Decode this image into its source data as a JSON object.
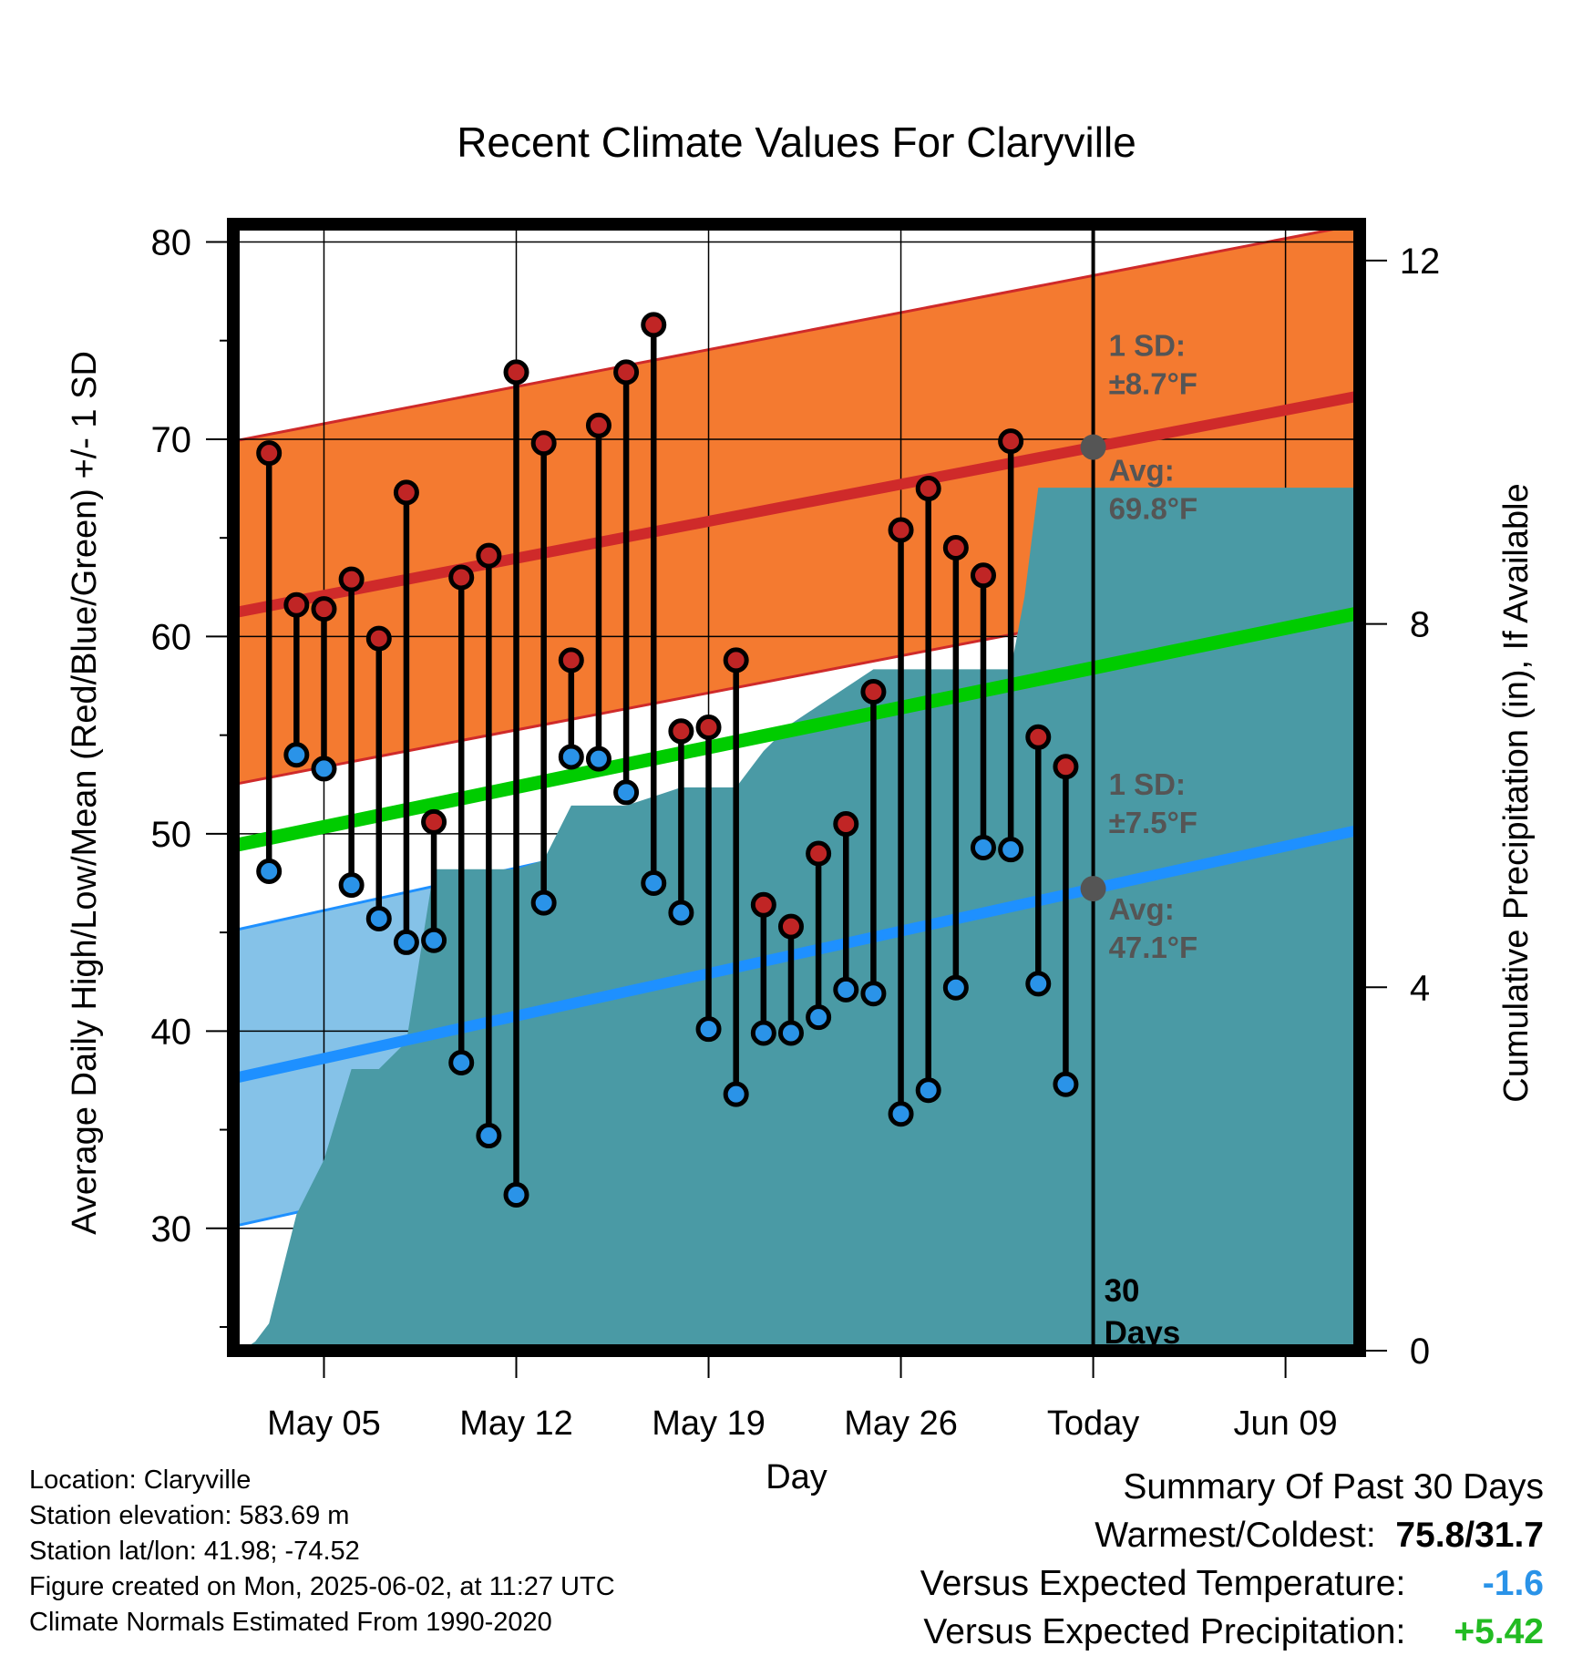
{
  "chart_data": {
    "type": "line",
    "title": "Recent Climate Values For Claryville",
    "xlabel": "Day",
    "ylabel": "Average Daily High/Low/Mean (Red/Blue/Green) +/- 1 SD",
    "y2label": "Cumulative Precipitation (in), If Available",
    "x_ticks": [
      {
        "day": 5,
        "label": "May 05"
      },
      {
        "day": 12,
        "label": "May 12"
      },
      {
        "day": 19,
        "label": "May 19"
      },
      {
        "day": 26,
        "label": "May 26"
      },
      {
        "day": 33,
        "label": "Today"
      },
      {
        "day": 40,
        "label": "Jun 09"
      }
    ],
    "xlim": [
      1.7,
      42.7
    ],
    "ylim": [
      23.8,
      80.9
    ],
    "y_ticks": [
      30,
      40,
      50,
      60,
      70,
      80
    ],
    "y2lim": [
      0,
      12.4
    ],
    "y2_ticks": [
      0,
      4,
      8,
      12
    ],
    "highs": [
      {
        "day": 3,
        "value": 69.3
      },
      {
        "day": 4,
        "value": 61.6
      },
      {
        "day": 5,
        "value": 61.4
      },
      {
        "day": 6,
        "value": 62.9
      },
      {
        "day": 7,
        "value": 59.9
      },
      {
        "day": 8,
        "value": 67.3
      },
      {
        "day": 9,
        "value": 50.6
      },
      {
        "day": 10,
        "value": 63.0
      },
      {
        "day": 11,
        "value": 64.1
      },
      {
        "day": 12,
        "value": 73.4
      },
      {
        "day": 13,
        "value": 69.8
      },
      {
        "day": 14,
        "value": 58.8
      },
      {
        "day": 15,
        "value": 70.7
      },
      {
        "day": 16,
        "value": 73.4
      },
      {
        "day": 17,
        "value": 75.8
      },
      {
        "day": 18,
        "value": 55.2
      },
      {
        "day": 19,
        "value": 55.4
      },
      {
        "day": 20,
        "value": 58.8
      },
      {
        "day": 21,
        "value": 46.4
      },
      {
        "day": 22,
        "value": 45.3
      },
      {
        "day": 23,
        "value": 49.0
      },
      {
        "day": 24,
        "value": 50.5
      },
      {
        "day": 25,
        "value": 57.2
      },
      {
        "day": 26,
        "value": 65.4
      },
      {
        "day": 27,
        "value": 67.5
      },
      {
        "day": 28,
        "value": 64.5
      },
      {
        "day": 29,
        "value": 63.1
      },
      {
        "day": 30,
        "value": 69.9
      },
      {
        "day": 31,
        "value": 54.9
      },
      {
        "day": 32,
        "value": 53.4
      }
    ],
    "lows": [
      {
        "day": 3,
        "value": 48.1
      },
      {
        "day": 4,
        "value": 54.0
      },
      {
        "day": 5,
        "value": 53.3
      },
      {
        "day": 6,
        "value": 47.4
      },
      {
        "day": 7,
        "value": 45.7
      },
      {
        "day": 8,
        "value": 44.5
      },
      {
        "day": 9,
        "value": 44.6
      },
      {
        "day": 10,
        "value": 38.4
      },
      {
        "day": 11,
        "value": 34.7
      },
      {
        "day": 12,
        "value": 31.7
      },
      {
        "day": 13,
        "value": 46.5
      },
      {
        "day": 14,
        "value": 53.9
      },
      {
        "day": 15,
        "value": 53.8
      },
      {
        "day": 16,
        "value": 52.1
      },
      {
        "day": 17,
        "value": 47.5
      },
      {
        "day": 18,
        "value": 46.0
      },
      {
        "day": 19,
        "value": 40.1
      },
      {
        "day": 20,
        "value": 36.8
      },
      {
        "day": 21,
        "value": 39.9
      },
      {
        "day": 22,
        "value": 39.9
      },
      {
        "day": 23,
        "value": 40.7
      },
      {
        "day": 24,
        "value": 42.1
      },
      {
        "day": 25,
        "value": 41.9
      },
      {
        "day": 26,
        "value": 35.8
      },
      {
        "day": 27,
        "value": 37.0
      },
      {
        "day": 28,
        "value": 42.2
      },
      {
        "day": 29,
        "value": 49.3
      },
      {
        "day": 30,
        "value": 49.2
      },
      {
        "day": 31,
        "value": 42.4
      },
      {
        "day": 32,
        "value": 37.3
      }
    ],
    "normal_high": {
      "start": 61.2,
      "end": 72.2
    },
    "normal_high_sd": 8.7,
    "normal_low": {
      "start": 37.6,
      "end": 50.2
    },
    "normal_low_sd": 7.5,
    "normal_mean": {
      "start": 49.4,
      "end": 61.2
    },
    "cumulative_precip": [
      {
        "day": 2.0,
        "value": 0.0
      },
      {
        "day": 2.5,
        "value": 0.1
      },
      {
        "day": 3.0,
        "value": 0.3
      },
      {
        "day": 4.0,
        "value": 1.5
      },
      {
        "day": 5.0,
        "value": 2.1
      },
      {
        "day": 6.0,
        "value": 3.1
      },
      {
        "day": 7.0,
        "value": 3.1
      },
      {
        "day": 8.0,
        "value": 3.4
      },
      {
        "day": 9.0,
        "value": 5.3
      },
      {
        "day": 10.0,
        "value": 5.3
      },
      {
        "day": 11.0,
        "value": 5.3
      },
      {
        "day": 12.0,
        "value": 5.3
      },
      {
        "day": 13.0,
        "value": 5.4
      },
      {
        "day": 14.0,
        "value": 6.0
      },
      {
        "day": 15.0,
        "value": 6.0
      },
      {
        "day": 16.0,
        "value": 6.0
      },
      {
        "day": 17.0,
        "value": 6.1
      },
      {
        "day": 18.0,
        "value": 6.2
      },
      {
        "day": 19.0,
        "value": 6.2
      },
      {
        "day": 20.0,
        "value": 6.2
      },
      {
        "day": 21.0,
        "value": 6.6
      },
      {
        "day": 22.0,
        "value": 6.9
      },
      {
        "day": 23.0,
        "value": 7.1
      },
      {
        "day": 24.0,
        "value": 7.3
      },
      {
        "day": 25.0,
        "value": 7.5
      },
      {
        "day": 26.0,
        "value": 7.5
      },
      {
        "day": 27.0,
        "value": 7.5
      },
      {
        "day": 28.0,
        "value": 7.5
      },
      {
        "day": 29.0,
        "value": 7.5
      },
      {
        "day": 30.0,
        "value": 7.5
      },
      {
        "day": 30.5,
        "value": 8.3
      },
      {
        "day": 31.0,
        "value": 9.5
      },
      {
        "day": 33.0,
        "value": 9.5
      },
      {
        "day": 42.7,
        "value": 9.5
      }
    ],
    "today_day": 33,
    "annotations": {
      "high_sd_label": "1 SD:",
      "high_sd_value": "±8.7°F",
      "high_avg_label": "Avg:",
      "high_avg_value": "69.8°F",
      "low_sd_label": "1 SD:",
      "low_sd_value": "±7.5°F",
      "low_avg_label": "Avg:",
      "low_avg_value": "47.1°F",
      "days_number": "30",
      "days_word": "Days"
    },
    "colors": {
      "high_band": "#f47a30",
      "high_line": "#cf2a2a",
      "low_band": "#85c2e8",
      "low_line": "#1e90ff",
      "mean_line": "#00cc00",
      "precip": "#4a9aa5",
      "high_marker": "#c02525",
      "low_marker": "#2a93e8",
      "annotation": "#555555"
    }
  },
  "footer": {
    "location": "Location: Claryville",
    "elevation": "Station elevation: 583.69 m",
    "latlon": "Station lat/lon: 41.98; -74.52",
    "created": "Figure created on Mon, 2025-06-02, at 11:27 UTC",
    "normals": "Climate Normals Estimated From 1990-2020"
  },
  "summary": {
    "title": "Summary Of Past 30 Days",
    "warm_cold_label": "Warmest/Coldest:",
    "warm_cold_value": "75.8/31.7",
    "temp_label": "Versus Expected Temperature:",
    "temp_value": "-1.6",
    "temp_color": "#2a93e8",
    "precip_label": "Versus Expected Precipitation:",
    "precip_value": "+5.42",
    "precip_color": "#22bb22"
  }
}
